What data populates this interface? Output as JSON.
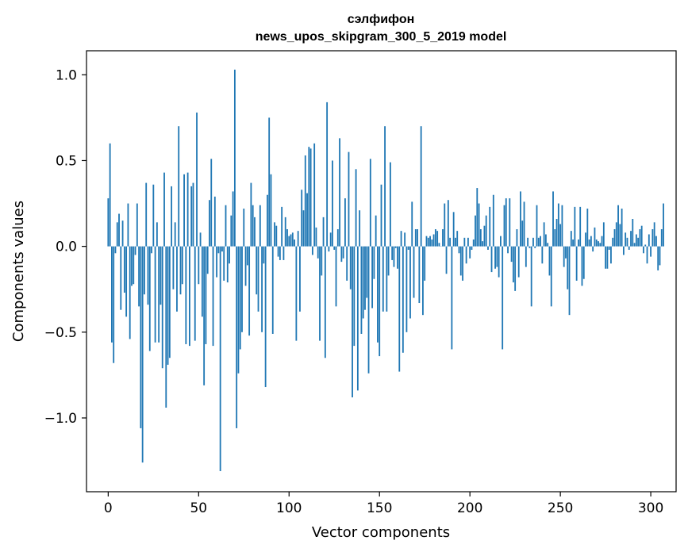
{
  "chart_data": {
    "type": "bar",
    "title": "сэлфифон",
    "subtitle": "news_upos_skipgram_300_5_2019 model",
    "xlabel": "Vector components",
    "ylabel": "Components values",
    "xlim": [
      -12,
      314
    ],
    "ylim": [
      -1.43,
      1.14
    ],
    "x_ticks": [
      0,
      50,
      100,
      150,
      200,
      250,
      300
    ],
    "x_tick_labels": [
      "0",
      "50",
      "100",
      "150",
      "200",
      "250",
      "300"
    ],
    "y_ticks": [
      -1.0,
      -0.5,
      0.0,
      0.5,
      1.0
    ],
    "y_tick_labels": [
      "−1.0",
      "−0.5",
      "0.0",
      "0.5",
      "1.0"
    ],
    "grid": false,
    "legend": "none",
    "bar_color": "#1f77b4",
    "series": [
      {
        "values": [
          0.28,
          0.6,
          -0.56,
          -0.68,
          -0.04,
          0.14,
          0.19,
          -0.37,
          0.15,
          -0.27,
          -0.41,
          0.25,
          -0.54,
          -0.23,
          -0.22,
          -0.05,
          0.25,
          -0.35,
          -1.06,
          -1.26,
          -0.28,
          0.37,
          -0.34,
          -0.61,
          -0.04,
          0.36,
          -0.56,
          0.14,
          -0.56,
          -0.34,
          -0.71,
          0.43,
          -0.94,
          -0.69,
          -0.65,
          0.35,
          -0.25,
          0.14,
          -0.38,
          0.7,
          -0.28,
          -0.22,
          0.42,
          -0.57,
          0.43,
          -0.58,
          0.35,
          0.37,
          -0.55,
          0.78,
          -0.22,
          0.08,
          -0.41,
          -0.81,
          -0.57,
          -0.16,
          0.27,
          0.51,
          -0.58,
          0.29,
          -0.18,
          -0.04,
          -1.31,
          -0.03,
          -0.2,
          0.24,
          -0.21,
          -0.1,
          0.18,
          0.32,
          1.03,
          -1.06,
          -0.74,
          -0.6,
          -0.5,
          0.22,
          -0.23,
          -0.11,
          -0.52,
          0.37,
          0.24,
          0.17,
          -0.28,
          -0.38,
          0.24,
          -0.5,
          -0.1,
          -0.82,
          0.3,
          0.75,
          0.42,
          -0.51,
          0.14,
          0.12,
          -0.06,
          -0.08,
          0.23,
          -0.08,
          0.17,
          0.1,
          0.06,
          0.07,
          0.08,
          0.04,
          -0.55,
          0.09,
          -0.38,
          0.33,
          0.21,
          0.53,
          0.31,
          0.58,
          0.57,
          -0.05,
          0.6,
          0.11,
          -0.07,
          -0.55,
          -0.17,
          0.17,
          -0.65,
          0.84,
          -0.03,
          0.08,
          0.5,
          -0.02,
          -0.35,
          0.1,
          0.63,
          -0.09,
          -0.07,
          0.28,
          -0.2,
          0.55,
          -0.25,
          -0.88,
          -0.58,
          0.45,
          -0.84,
          0.21,
          -0.51,
          -0.42,
          -0.37,
          -0.3,
          -0.74,
          0.51,
          -0.36,
          -0.19,
          0.18,
          -0.56,
          -0.64,
          0.36,
          -0.38,
          0.7,
          -0.38,
          -0.17,
          0.49,
          -0.08,
          -0.12,
          -0.01,
          -0.13,
          -0.73,
          0.09,
          -0.62,
          0.08,
          -0.5,
          -0.02,
          -0.42,
          0.26,
          -0.3,
          0.1,
          0.1,
          -0.33,
          0.7,
          -0.4,
          -0.2,
          0.06,
          0.05,
          0.06,
          0.04,
          0.07,
          0.1,
          0.09,
          0.02,
          0.0,
          0.1,
          0.25,
          -0.16,
          0.27,
          0.05,
          -0.6,
          0.2,
          0.05,
          0.09,
          -0.04,
          -0.17,
          -0.2,
          0.05,
          -0.1,
          0.05,
          -0.07,
          -0.02,
          0.04,
          0.18,
          0.34,
          0.25,
          0.1,
          0.03,
          0.12,
          0.18,
          -0.02,
          0.23,
          -0.15,
          0.3,
          -0.13,
          -0.12,
          -0.18,
          0.06,
          -0.6,
          0.24,
          0.28,
          -0.04,
          0.28,
          -0.09,
          -0.21,
          -0.26,
          0.1,
          -0.18,
          0.32,
          0.15,
          0.26,
          -0.12,
          0.05,
          -0.01,
          -0.35,
          0.05,
          -0.01,
          0.24,
          0.05,
          0.06,
          -0.1,
          0.14,
          0.07,
          0.02,
          -0.17,
          -0.35,
          0.32,
          0.1,
          0.16,
          0.25,
          0.13,
          0.24,
          -0.12,
          -0.07,
          -0.25,
          -0.4,
          0.09,
          0.04,
          0.23,
          -0.2,
          0.04,
          0.23,
          -0.23,
          -0.19,
          0.08,
          0.22,
          0.04,
          0.06,
          -0.03,
          0.11,
          0.04,
          0.03,
          0.02,
          0.06,
          0.14,
          -0.13,
          -0.13,
          -0.02,
          -0.1,
          0.05,
          0.1,
          0.14,
          0.24,
          0.13,
          0.22,
          -0.05,
          0.08,
          0.05,
          -0.02,
          0.09,
          0.16,
          0.02,
          0.07,
          0.05,
          0.1,
          0.12,
          -0.04,
          0.01,
          -0.1,
          0.07,
          -0.06,
          0.1,
          0.14,
          0.06,
          -0.14,
          -0.11,
          0.1,
          0.25
        ]
      }
    ]
  }
}
